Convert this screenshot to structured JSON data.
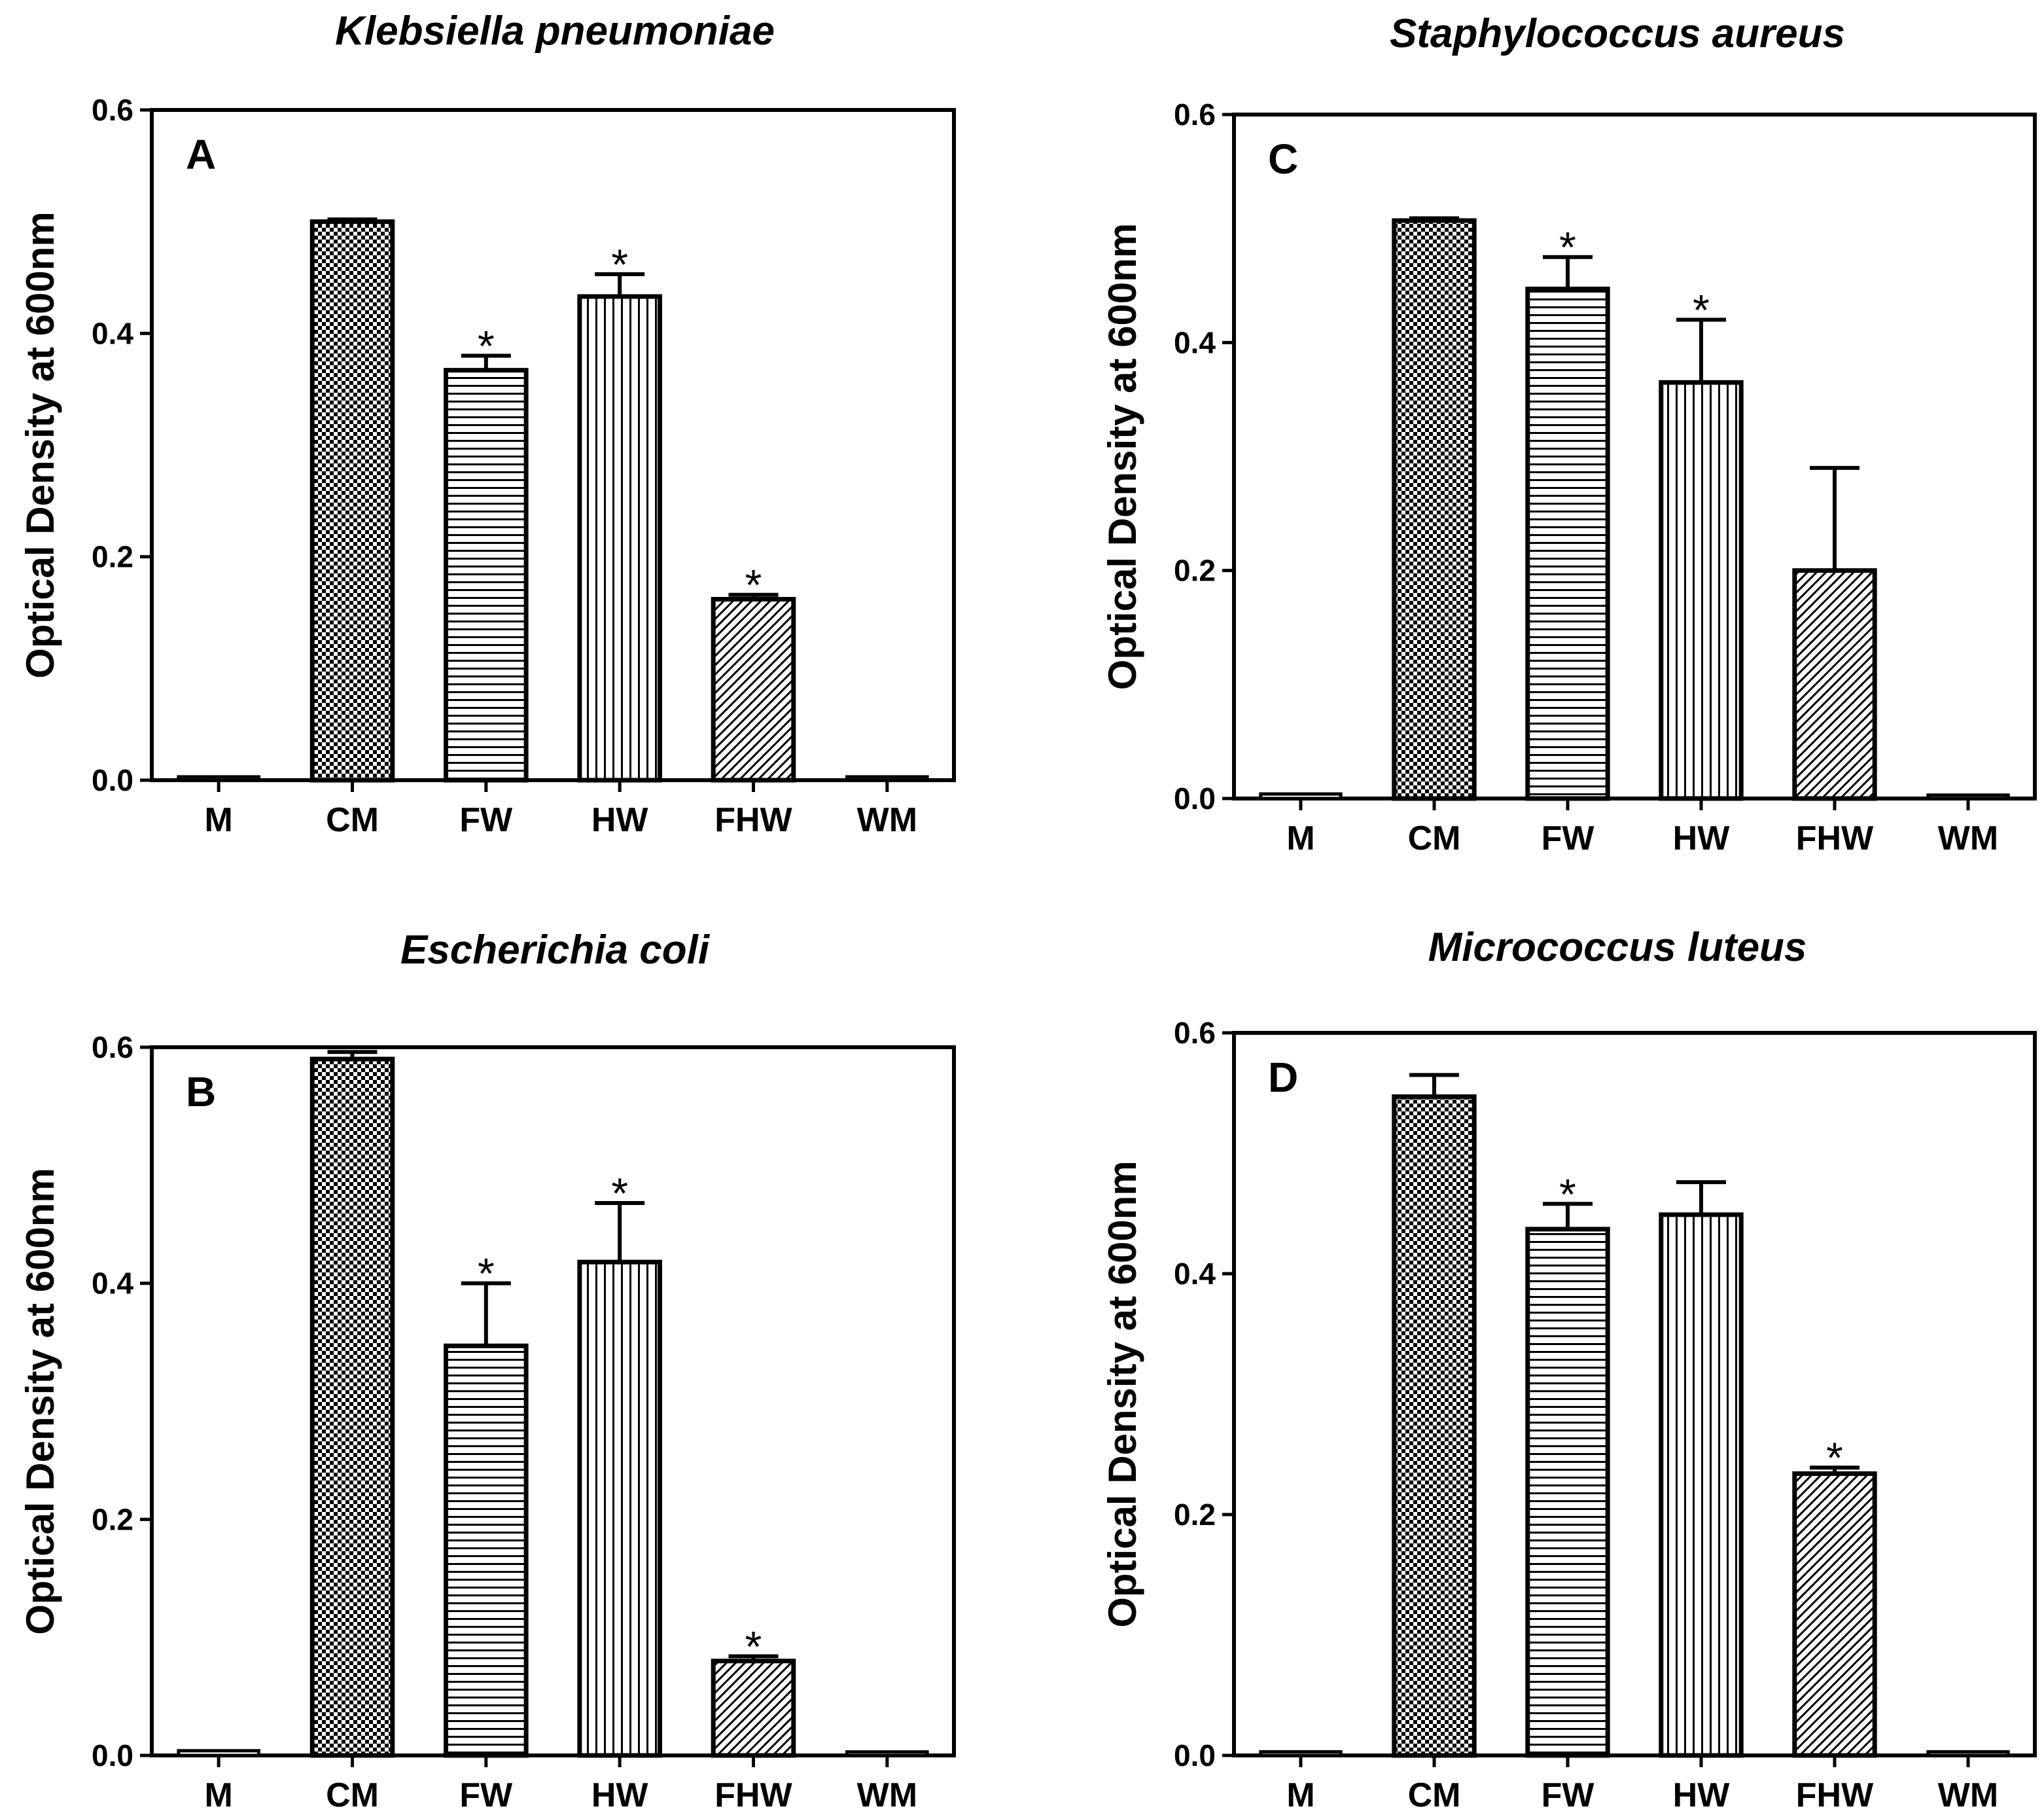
{
  "chart_data": [
    {
      "type": "bar",
      "panel_letter": "A",
      "title": "Klebsiella pneumoniae",
      "xlabel": "",
      "ylabel": "Optical Density at 600nm",
      "ylim": [
        0,
        0.6
      ],
      "yticks": [
        "0.0",
        "0.2",
        "0.4",
        "0.6"
      ],
      "categories": [
        "M",
        "CM",
        "FW",
        "HW",
        "FHW",
        "WM"
      ],
      "values": [
        0.003,
        0.5,
        0.367,
        0.433,
        0.162,
        0.003
      ],
      "errors": [
        0.001,
        0.002,
        0.013,
        0.02,
        0.004,
        0.001
      ],
      "significance": [
        "",
        "",
        "*",
        "*",
        "*",
        ""
      ],
      "patterns": [
        "none",
        "checker",
        "hlines",
        "vlines",
        "diag",
        "none"
      ],
      "grid": false
    },
    {
      "type": "bar",
      "panel_letter": "B",
      "title": "Escherichia coli",
      "xlabel": "",
      "ylabel": "Optical Density at 600nm",
      "ylim": [
        0,
        0.6
      ],
      "yticks": [
        "0.0",
        "0.2",
        "0.4",
        "0.6"
      ],
      "categories": [
        "M",
        "CM",
        "FW",
        "HW",
        "FHW",
        "WM"
      ],
      "values": [
        0.004,
        0.59,
        0.347,
        0.418,
        0.08,
        0.003
      ],
      "errors": [
        0.001,
        0.006,
        0.053,
        0.05,
        0.004,
        0.001
      ],
      "significance": [
        "",
        "",
        "*",
        "*",
        "*",
        ""
      ],
      "patterns": [
        "none",
        "checker",
        "hlines",
        "vlines",
        "diag",
        "none"
      ],
      "grid": false
    },
    {
      "type": "bar",
      "panel_letter": "C",
      "title": "Staphylococcus aureus",
      "xlabel": "",
      "ylabel": "Optical Density at 600nm",
      "ylim": [
        0,
        0.6
      ],
      "yticks": [
        "0.0",
        "0.2",
        "0.4",
        "0.6"
      ],
      "categories": [
        "M",
        "CM",
        "FW",
        "HW",
        "FHW",
        "WM"
      ],
      "values": [
        0.004,
        0.507,
        0.447,
        0.365,
        0.2,
        0.003
      ],
      "errors": [
        0.001,
        0.002,
        0.028,
        0.055,
        0.09,
        0.001
      ],
      "significance": [
        "",
        "",
        "*",
        "*",
        "",
        ""
      ],
      "patterns": [
        "none",
        "checker",
        "hlines",
        "vlines",
        "diag",
        "none"
      ],
      "grid": false
    },
    {
      "type": "bar",
      "panel_letter": "D",
      "title": "Micrococcus luteus",
      "xlabel": "",
      "ylabel": "Optical Density at 600nm",
      "ylim": [
        0,
        0.6
      ],
      "yticks": [
        "0.0",
        "0.2",
        "0.4",
        "0.6"
      ],
      "categories": [
        "M",
        "CM",
        "FW",
        "HW",
        "FHW",
        "WM"
      ],
      "values": [
        0.003,
        0.547,
        0.437,
        0.449,
        0.234,
        0.003
      ],
      "errors": [
        0.001,
        0.018,
        0.021,
        0.027,
        0.005,
        0.001
      ],
      "significance": [
        "",
        "",
        "*",
        "",
        "*",
        ""
      ],
      "patterns": [
        "none",
        "checker",
        "hlines",
        "vlines",
        "diag",
        "none"
      ],
      "grid": false
    }
  ]
}
